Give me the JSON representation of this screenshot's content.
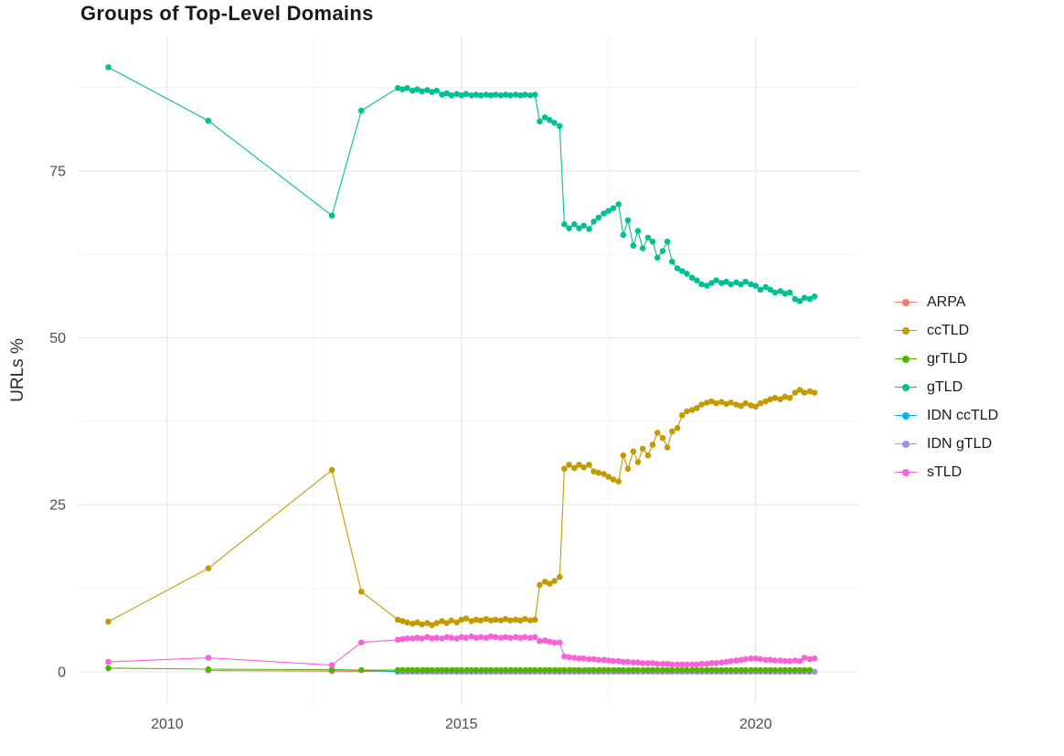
{
  "colors": {
    "background": "#ffffff",
    "grid_major": "#e9e9e9",
    "grid_minor": "#f4f4f4",
    "tick_text": "#4d4d4d",
    "title_text": "#1a1a1a",
    "legend_text": "#1a1a1a"
  },
  "chart_data": {
    "type": "line",
    "title": "Groups of Top-Level Domains",
    "xlabel": "",
    "ylabel": "URLs %",
    "x_ticks": [
      2010,
      2015,
      2020
    ],
    "x_minor_ticks": [
      2012.5,
      2017.5
    ],
    "y_ticks": [
      0,
      25,
      50,
      75
    ],
    "y_minor_ticks": [
      12.5,
      37.5,
      62.5,
      87.5
    ],
    "x_range": [
      2008.48,
      2021.76
    ],
    "y_range": [
      -4.8,
      95.1
    ],
    "grid": true,
    "legend_position": "right",
    "draw_order": [
      "ARPA",
      "IDN ccTLD",
      "IDN gTLD",
      "grTLD",
      "ccTLD",
      "gTLD",
      "sTLD"
    ],
    "series": [
      {
        "name": "ARPA",
        "color": "#F8766D",
        "points": [
          [
            2010.7,
            0.2
          ],
          [
            2012.8,
            0.1
          ]
        ],
        "runs": [
          {
            "from": 2013.92,
            "to": 2021,
            "step": 0.0833,
            "y": 0.05
          }
        ]
      },
      {
        "name": "ccTLD",
        "color": "#C49A00",
        "points": [
          [
            2009,
            7.5
          ],
          [
            2010.7,
            15.5
          ],
          [
            2012.8,
            30.2
          ],
          [
            2013.3,
            12
          ],
          [
            2013.92,
            7.8
          ],
          [
            2014.0,
            7.6
          ],
          [
            2014.08,
            7.4
          ],
          [
            2014.17,
            7.2
          ],
          [
            2014.25,
            7.4
          ],
          [
            2014.33,
            7.1
          ],
          [
            2014.42,
            7.3
          ],
          [
            2014.5,
            7.0
          ],
          [
            2014.58,
            7.3
          ],
          [
            2014.67,
            7.6
          ],
          [
            2014.75,
            7.3
          ],
          [
            2014.83,
            7.7
          ],
          [
            2014.92,
            7.4
          ],
          [
            2015.0,
            7.8
          ],
          [
            2015.08,
            8.0
          ],
          [
            2015.17,
            7.6
          ],
          [
            2015.25,
            7.8
          ],
          [
            2015.33,
            7.7
          ],
          [
            2015.42,
            7.9
          ],
          [
            2015.5,
            7.7
          ],
          [
            2015.58,
            7.8
          ],
          [
            2015.67,
            7.7
          ],
          [
            2015.75,
            7.9
          ],
          [
            2015.83,
            7.7
          ],
          [
            2015.92,
            7.8
          ],
          [
            2016.0,
            7.7
          ],
          [
            2016.08,
            7.9
          ],
          [
            2016.17,
            7.7
          ],
          [
            2016.25,
            7.8
          ],
          [
            2016.33,
            13.0
          ],
          [
            2016.42,
            13.5
          ],
          [
            2016.5,
            13.2
          ],
          [
            2016.58,
            13.6
          ],
          [
            2016.67,
            14.2
          ],
          [
            2016.75,
            30.4
          ],
          [
            2016.83,
            31.0
          ],
          [
            2016.92,
            30.5
          ],
          [
            2017.0,
            31.0
          ],
          [
            2017.08,
            30.6
          ],
          [
            2017.17,
            31.0
          ],
          [
            2017.25,
            30.0
          ],
          [
            2017.33,
            29.8
          ],
          [
            2017.42,
            29.6
          ],
          [
            2017.5,
            29.2
          ],
          [
            2017.58,
            28.8
          ],
          [
            2017.67,
            28.5
          ],
          [
            2017.75,
            32.4
          ],
          [
            2017.83,
            30.4
          ],
          [
            2017.92,
            33.0
          ],
          [
            2018.0,
            31.4
          ],
          [
            2018.08,
            33.4
          ],
          [
            2018.17,
            32.4
          ],
          [
            2018.25,
            34.0
          ],
          [
            2018.33,
            35.8
          ],
          [
            2018.42,
            35.0
          ],
          [
            2018.5,
            33.6
          ],
          [
            2018.58,
            36.0
          ],
          [
            2018.67,
            36.5
          ],
          [
            2018.75,
            38.4
          ],
          [
            2018.83,
            39.0
          ],
          [
            2018.92,
            39.2
          ],
          [
            2019.0,
            39.5
          ],
          [
            2019.08,
            40.0
          ],
          [
            2019.17,
            40.3
          ],
          [
            2019.25,
            40.5
          ],
          [
            2019.33,
            40.2
          ],
          [
            2019.42,
            40.4
          ],
          [
            2019.5,
            40.1
          ],
          [
            2019.58,
            40.3
          ],
          [
            2019.67,
            40.0
          ],
          [
            2019.75,
            39.8
          ],
          [
            2019.83,
            40.2
          ],
          [
            2019.92,
            39.9
          ],
          [
            2020.0,
            39.7
          ],
          [
            2020.08,
            40.2
          ],
          [
            2020.17,
            40.5
          ],
          [
            2020.25,
            40.8
          ],
          [
            2020.33,
            41.0
          ],
          [
            2020.42,
            40.8
          ],
          [
            2020.5,
            41.2
          ],
          [
            2020.58,
            41.0
          ],
          [
            2020.67,
            41.8
          ],
          [
            2020.75,
            42.2
          ],
          [
            2020.83,
            41.8
          ],
          [
            2020.92,
            42.0
          ],
          [
            2021.0,
            41.8
          ]
        ]
      },
      {
        "name": "grTLD",
        "color": "#53B400",
        "points": [
          [
            2009,
            0.55
          ],
          [
            2010.7,
            0.4
          ],
          [
            2012.8,
            0.3
          ],
          [
            2013.3,
            0.25
          ]
        ],
        "runs": [
          {
            "from": 2013.92,
            "to": 2021,
            "step": 0.0833,
            "y": 0.25
          }
        ]
      },
      {
        "name": "gTLD",
        "color": "#00C094",
        "points": [
          [
            2009,
            90.5
          ],
          [
            2010.7,
            82.5
          ],
          [
            2012.8,
            68.3
          ],
          [
            2013.3,
            84.0
          ],
          [
            2013.92,
            87.4
          ],
          [
            2014.0,
            87.2
          ],
          [
            2014.08,
            87.4
          ],
          [
            2014.17,
            87.0
          ],
          [
            2014.25,
            87.2
          ],
          [
            2014.33,
            86.9
          ],
          [
            2014.42,
            87.1
          ],
          [
            2014.5,
            86.8
          ],
          [
            2014.58,
            87.0
          ],
          [
            2014.67,
            86.4
          ],
          [
            2014.75,
            86.6
          ],
          [
            2014.83,
            86.3
          ],
          [
            2014.92,
            86.5
          ],
          [
            2015.0,
            86.3
          ],
          [
            2015.08,
            86.5
          ],
          [
            2015.17,
            86.3
          ],
          [
            2015.25,
            86.4
          ],
          [
            2015.33,
            86.3
          ],
          [
            2015.42,
            86.4
          ],
          [
            2015.5,
            86.3
          ],
          [
            2015.58,
            86.4
          ],
          [
            2015.67,
            86.3
          ],
          [
            2015.75,
            86.4
          ],
          [
            2015.83,
            86.3
          ],
          [
            2015.92,
            86.4
          ],
          [
            2016.0,
            86.3
          ],
          [
            2016.08,
            86.4
          ],
          [
            2016.17,
            86.3
          ],
          [
            2016.25,
            86.4
          ],
          [
            2016.33,
            82.4
          ],
          [
            2016.42,
            83.0
          ],
          [
            2016.5,
            82.6
          ],
          [
            2016.58,
            82.2
          ],
          [
            2016.67,
            81.7
          ],
          [
            2016.75,
            67.0
          ],
          [
            2016.83,
            66.4
          ],
          [
            2016.92,
            67.0
          ],
          [
            2017.0,
            66.4
          ],
          [
            2017.08,
            66.8
          ],
          [
            2017.17,
            66.3
          ],
          [
            2017.25,
            67.4
          ],
          [
            2017.33,
            68.0
          ],
          [
            2017.42,
            68.6
          ],
          [
            2017.5,
            69.0
          ],
          [
            2017.58,
            69.4
          ],
          [
            2017.67,
            70.0
          ],
          [
            2017.75,
            65.4
          ],
          [
            2017.83,
            67.6
          ],
          [
            2017.92,
            63.8
          ],
          [
            2018.0,
            66.0
          ],
          [
            2018.08,
            63.4
          ],
          [
            2018.17,
            65.0
          ],
          [
            2018.25,
            64.4
          ],
          [
            2018.33,
            62.0
          ],
          [
            2018.42,
            63.0
          ],
          [
            2018.5,
            64.4
          ],
          [
            2018.58,
            61.4
          ],
          [
            2018.67,
            60.4
          ],
          [
            2018.75,
            60.0
          ],
          [
            2018.83,
            59.6
          ],
          [
            2018.92,
            59.0
          ],
          [
            2019.0,
            58.6
          ],
          [
            2019.08,
            58.0
          ],
          [
            2019.17,
            57.8
          ],
          [
            2019.25,
            58.2
          ],
          [
            2019.33,
            58.6
          ],
          [
            2019.42,
            58.2
          ],
          [
            2019.5,
            58.4
          ],
          [
            2019.58,
            58.0
          ],
          [
            2019.67,
            58.3
          ],
          [
            2019.75,
            58.0
          ],
          [
            2019.83,
            58.4
          ],
          [
            2019.92,
            58.0
          ],
          [
            2020.0,
            57.8
          ],
          [
            2020.08,
            57.2
          ],
          [
            2020.17,
            57.6
          ],
          [
            2020.25,
            57.2
          ],
          [
            2020.33,
            56.8
          ],
          [
            2020.42,
            57.0
          ],
          [
            2020.5,
            56.6
          ],
          [
            2020.58,
            56.8
          ],
          [
            2020.67,
            55.8
          ],
          [
            2020.75,
            55.5
          ],
          [
            2020.83,
            56.0
          ],
          [
            2020.92,
            55.8
          ],
          [
            2021.0,
            56.2
          ]
        ]
      },
      {
        "name": "IDN ccTLD",
        "color": "#00B6EB",
        "points": [
          [
            2012.8,
            0.35
          ]
        ],
        "runs": [
          {
            "from": 2013.92,
            "to": 2021,
            "step": 0.0833,
            "y": 0.04
          }
        ]
      },
      {
        "name": "IDN gTLD",
        "color": "#A58AFF",
        "points": [],
        "runs": [
          {
            "from": 2014.0,
            "to": 2021,
            "step": 0.0833,
            "y": 0.02
          }
        ]
      },
      {
        "name": "sTLD",
        "color": "#FB61D7",
        "points": [
          [
            2009,
            1.5
          ],
          [
            2010.7,
            2.1
          ],
          [
            2012.8,
            1.0
          ],
          [
            2013.3,
            4.4
          ],
          [
            2013.92,
            4.8
          ],
          [
            2014.0,
            4.9
          ],
          [
            2014.08,
            5.0
          ],
          [
            2014.17,
            5.0
          ],
          [
            2014.25,
            5.1
          ],
          [
            2014.33,
            5.0
          ],
          [
            2014.42,
            5.2
          ],
          [
            2014.5,
            5.0
          ],
          [
            2014.58,
            5.1
          ],
          [
            2014.67,
            5.0
          ],
          [
            2014.75,
            5.2
          ],
          [
            2014.83,
            5.1
          ],
          [
            2014.92,
            5.0
          ],
          [
            2015.0,
            5.2
          ],
          [
            2015.08,
            5.1
          ],
          [
            2015.17,
            5.3
          ],
          [
            2015.25,
            5.1
          ],
          [
            2015.33,
            5.2
          ],
          [
            2015.42,
            5.1
          ],
          [
            2015.5,
            5.3
          ],
          [
            2015.58,
            5.2
          ],
          [
            2015.67,
            5.1
          ],
          [
            2015.75,
            5.2
          ],
          [
            2015.83,
            5.1
          ],
          [
            2015.92,
            5.2
          ],
          [
            2016.0,
            5.1
          ],
          [
            2016.08,
            5.2
          ],
          [
            2016.17,
            5.1
          ],
          [
            2016.25,
            5.2
          ],
          [
            2016.33,
            4.6
          ],
          [
            2016.42,
            4.7
          ],
          [
            2016.5,
            4.5
          ],
          [
            2016.58,
            4.4
          ],
          [
            2016.67,
            4.4
          ],
          [
            2016.75,
            2.3
          ],
          [
            2016.83,
            2.2
          ],
          [
            2016.92,
            2.1
          ],
          [
            2017.0,
            2.0
          ],
          [
            2017.08,
            2.0
          ],
          [
            2017.17,
            1.9
          ],
          [
            2017.25,
            1.9
          ],
          [
            2017.33,
            1.8
          ],
          [
            2017.42,
            1.8
          ],
          [
            2017.5,
            1.7
          ],
          [
            2017.58,
            1.6
          ],
          [
            2017.67,
            1.6
          ],
          [
            2017.75,
            1.5
          ],
          [
            2017.83,
            1.5
          ],
          [
            2017.92,
            1.4
          ],
          [
            2018.0,
            1.4
          ],
          [
            2018.08,
            1.3
          ],
          [
            2018.17,
            1.3
          ],
          [
            2018.25,
            1.3
          ],
          [
            2018.33,
            1.2
          ],
          [
            2018.42,
            1.2
          ],
          [
            2018.5,
            1.2
          ],
          [
            2018.58,
            1.1
          ],
          [
            2018.67,
            1.1
          ],
          [
            2018.75,
            1.1
          ],
          [
            2018.83,
            1.1
          ],
          [
            2018.92,
            1.1
          ],
          [
            2019.0,
            1.1
          ],
          [
            2019.08,
            1.2
          ],
          [
            2019.17,
            1.2
          ],
          [
            2019.25,
            1.3
          ],
          [
            2019.33,
            1.3
          ],
          [
            2019.42,
            1.4
          ],
          [
            2019.5,
            1.5
          ],
          [
            2019.58,
            1.6
          ],
          [
            2019.67,
            1.7
          ],
          [
            2019.75,
            1.8
          ],
          [
            2019.83,
            1.9
          ],
          [
            2019.92,
            2.0
          ],
          [
            2020.0,
            2.0
          ],
          [
            2020.08,
            1.9
          ],
          [
            2020.17,
            1.8
          ],
          [
            2020.25,
            1.8
          ],
          [
            2020.33,
            1.7
          ],
          [
            2020.42,
            1.7
          ],
          [
            2020.5,
            1.6
          ],
          [
            2020.58,
            1.6
          ],
          [
            2020.67,
            1.7
          ],
          [
            2020.75,
            1.6
          ],
          [
            2020.83,
            2.1
          ],
          [
            2020.92,
            1.9
          ],
          [
            2021.0,
            2.0
          ]
        ]
      }
    ]
  }
}
